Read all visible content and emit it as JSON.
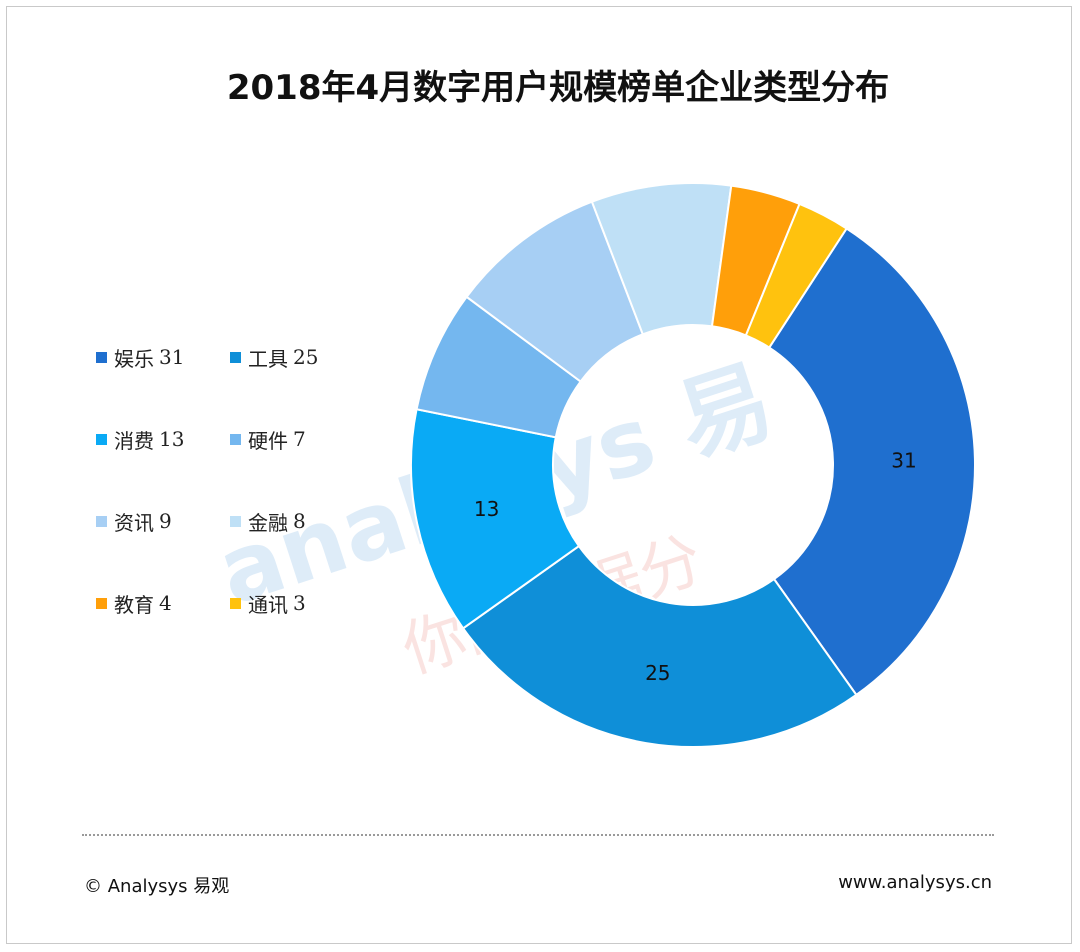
{
  "title": "2018年4月数字用户规模榜单企业类型分布",
  "chart_data": {
    "type": "pie",
    "subtype": "donut",
    "categories": [
      "娱乐",
      "工具",
      "消费",
      "硬件",
      "资讯",
      "金融",
      "教育",
      "通讯"
    ],
    "values": [
      31,
      25,
      13,
      7,
      9,
      8,
      4,
      3
    ],
    "slice_labels_shown": [
      "31",
      "25",
      "13"
    ],
    "colors": [
      "#1f6fcf",
      "#0f8fd8",
      "#0aaaf5",
      "#74b7ef",
      "#a7cff4",
      "#bfe0f6",
      "#ff9f0a",
      "#ffc20e"
    ],
    "legend": [
      {
        "name": "娱乐",
        "value": "31"
      },
      {
        "name": "工具",
        "value": "25"
      },
      {
        "name": "消费",
        "value": "13"
      },
      {
        "name": "硬件",
        "value": "7"
      },
      {
        "name": "资讯",
        "value": "9"
      },
      {
        "name": "金融",
        "value": "8"
      },
      {
        "name": "教育",
        "value": "4"
      },
      {
        "name": "通讯",
        "value": "3"
      }
    ],
    "legend_position": "left",
    "start_angle_deg": 33,
    "direction": "clockwise"
  },
  "watermark": {
    "text_en": "analysys 易",
    "text_cn": "你的数据分"
  },
  "footer": {
    "left": "© Analysys 易观",
    "right": "www.analysys.cn"
  }
}
